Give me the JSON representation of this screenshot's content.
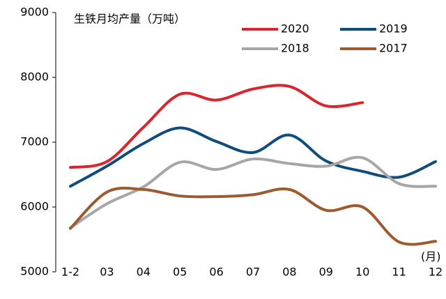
{
  "chart_data": {
    "type": "line",
    "title": "生铁月均产量（万吨）",
    "x_unit": "(月)",
    "categories": [
      "1-2",
      "03",
      "04",
      "05",
      "06",
      "07",
      "08",
      "09",
      "10",
      "11",
      "12"
    ],
    "series": [
      {
        "name": "2020",
        "color": "#d9252b",
        "values": [
          6610,
          6700,
          7230,
          7740,
          7650,
          7820,
          7860,
          7560,
          7610,
          null,
          null
        ]
      },
      {
        "name": "2019",
        "color": "#0f4c7e",
        "values": [
          6320,
          6630,
          6980,
          7220,
          7010,
          6840,
          7110,
          6710,
          6550,
          6460,
          6700
        ]
      },
      {
        "name": "2018",
        "color": "#a6a6a6",
        "values": [
          5680,
          6050,
          6310,
          6690,
          6580,
          6740,
          6670,
          6630,
          6760,
          6360,
          6320
        ]
      },
      {
        "name": "2017",
        "color": "#9c5a2e",
        "values": [
          5670,
          6230,
          6270,
          6170,
          6160,
          6190,
          6270,
          5950,
          6000,
          5460,
          5470
        ]
      }
    ],
    "ylim": [
      5000,
      9000
    ],
    "yticks": [
      5000,
      6000,
      7000,
      8000,
      9000
    ]
  }
}
